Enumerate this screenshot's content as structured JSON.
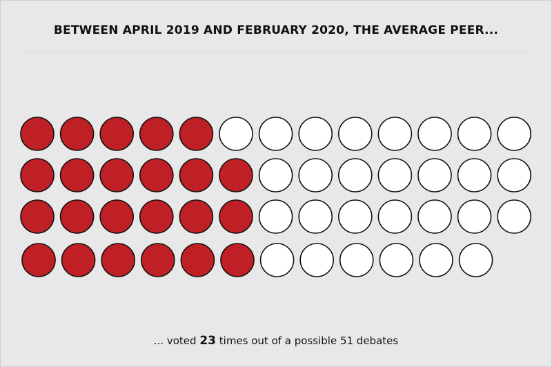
{
  "title": "BETWEEN APRIL 2019 AND FEBRUARY 2020, THE AVERAGE PEER...",
  "caption": {
    "prefix": "... voted ",
    "voted_count": "23",
    "suffix": " times out of a possible 51 debates"
  },
  "chart_data": {
    "type": "waffle",
    "total": 51,
    "filled": 23,
    "rows": [
      {
        "filled": 5,
        "total": 13
      },
      {
        "filled": 6,
        "total": 13
      },
      {
        "filled": 6,
        "total": 13
      },
      {
        "filled": 6,
        "total": 12
      }
    ],
    "colors": {
      "filled": "#bf2026",
      "empty": "#ffffff",
      "stroke": "#111111"
    }
  }
}
